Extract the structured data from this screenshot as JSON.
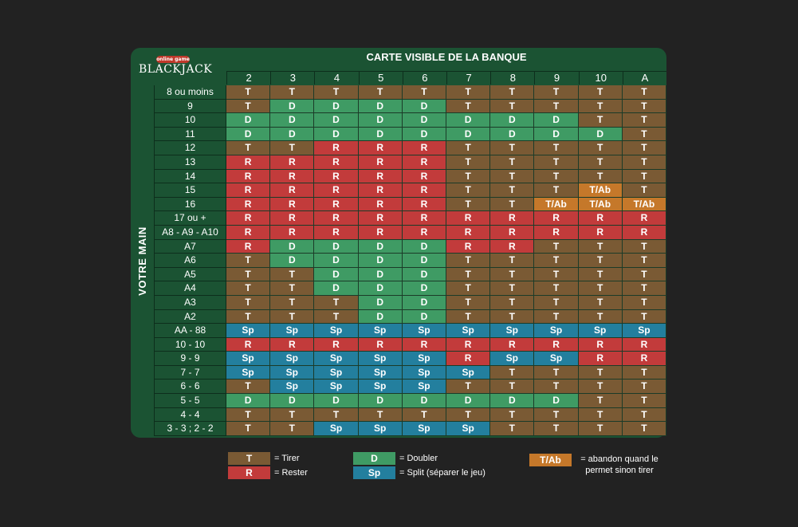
{
  "brand": {
    "badge": "online game",
    "name": "BLACKJACK"
  },
  "dealer_title": "CARTE VISIBLE DE LA BANQUE",
  "hand_title": "VOTRE MAIN",
  "dealer_cards": [
    "2",
    "3",
    "4",
    "5",
    "6",
    "7",
    "8",
    "9",
    "10",
    "A"
  ],
  "colors": {
    "T": "#7a5a34",
    "D": "#3f9b64",
    "R": "#c23b3b",
    "Sp": "#237f9e",
    "T/Ab": "#c5782a",
    "board": "#1b5333",
    "background": "#222222"
  },
  "rows": [
    {
      "hand": "8 ou moins",
      "actions": [
        "T",
        "T",
        "T",
        "T",
        "T",
        "T",
        "T",
        "T",
        "T",
        "T"
      ]
    },
    {
      "hand": "9",
      "actions": [
        "T",
        "D",
        "D",
        "D",
        "D",
        "T",
        "T",
        "T",
        "T",
        "T"
      ]
    },
    {
      "hand": "10",
      "actions": [
        "D",
        "D",
        "D",
        "D",
        "D",
        "D",
        "D",
        "D",
        "T",
        "T"
      ]
    },
    {
      "hand": "11",
      "actions": [
        "D",
        "D",
        "D",
        "D",
        "D",
        "D",
        "D",
        "D",
        "D",
        "T"
      ]
    },
    {
      "hand": "12",
      "actions": [
        "T",
        "T",
        "R",
        "R",
        "R",
        "T",
        "T",
        "T",
        "T",
        "T"
      ]
    },
    {
      "hand": "13",
      "actions": [
        "R",
        "R",
        "R",
        "R",
        "R",
        "T",
        "T",
        "T",
        "T",
        "T"
      ]
    },
    {
      "hand": "14",
      "actions": [
        "R",
        "R",
        "R",
        "R",
        "R",
        "T",
        "T",
        "T",
        "T",
        "T"
      ]
    },
    {
      "hand": "15",
      "actions": [
        "R",
        "R",
        "R",
        "R",
        "R",
        "T",
        "T",
        "T",
        "T/Ab",
        "T"
      ]
    },
    {
      "hand": "16",
      "actions": [
        "R",
        "R",
        "R",
        "R",
        "R",
        "T",
        "T",
        "T/Ab",
        "T/Ab",
        "T/Ab"
      ]
    },
    {
      "hand": "17 ou +",
      "actions": [
        "R",
        "R",
        "R",
        "R",
        "R",
        "R",
        "R",
        "R",
        "R",
        "R"
      ]
    },
    {
      "hand": "A8 - A9 - A10",
      "actions": [
        "R",
        "R",
        "R",
        "R",
        "R",
        "R",
        "R",
        "R",
        "R",
        "R"
      ]
    },
    {
      "hand": "A7",
      "actions": [
        "R",
        "D",
        "D",
        "D",
        "D",
        "R",
        "R",
        "T",
        "T",
        "T"
      ]
    },
    {
      "hand": "A6",
      "actions": [
        "T",
        "D",
        "D",
        "D",
        "D",
        "T",
        "T",
        "T",
        "T",
        "T"
      ]
    },
    {
      "hand": "A5",
      "actions": [
        "T",
        "T",
        "D",
        "D",
        "D",
        "T",
        "T",
        "T",
        "T",
        "T"
      ]
    },
    {
      "hand": "A4",
      "actions": [
        "T",
        "T",
        "D",
        "D",
        "D",
        "T",
        "T",
        "T",
        "T",
        "T"
      ]
    },
    {
      "hand": "A3",
      "actions": [
        "T",
        "T",
        "T",
        "D",
        "D",
        "T",
        "T",
        "T",
        "T",
        "T"
      ]
    },
    {
      "hand": "A2",
      "actions": [
        "T",
        "T",
        "T",
        "D",
        "D",
        "T",
        "T",
        "T",
        "T",
        "T"
      ]
    },
    {
      "hand": "AA - 88",
      "actions": [
        "Sp",
        "Sp",
        "Sp",
        "Sp",
        "Sp",
        "Sp",
        "Sp",
        "Sp",
        "Sp",
        "Sp"
      ]
    },
    {
      "hand": "10 - 10",
      "actions": [
        "R",
        "R",
        "R",
        "R",
        "R",
        "R",
        "R",
        "R",
        "R",
        "R"
      ]
    },
    {
      "hand": "9 - 9",
      "actions": [
        "Sp",
        "Sp",
        "Sp",
        "Sp",
        "Sp",
        "R",
        "Sp",
        "Sp",
        "R",
        "R"
      ]
    },
    {
      "hand": "7 - 7",
      "actions": [
        "Sp",
        "Sp",
        "Sp",
        "Sp",
        "Sp",
        "Sp",
        "T",
        "T",
        "T",
        "T"
      ]
    },
    {
      "hand": "6 - 6",
      "actions": [
        "T",
        "Sp",
        "Sp",
        "Sp",
        "Sp",
        "T",
        "T",
        "T",
        "T",
        "T"
      ]
    },
    {
      "hand": "5 - 5",
      "actions": [
        "D",
        "D",
        "D",
        "D",
        "D",
        "D",
        "D",
        "D",
        "T",
        "T"
      ]
    },
    {
      "hand": "4 - 4",
      "actions": [
        "T",
        "T",
        "T",
        "T",
        "T",
        "T",
        "T",
        "T",
        "T",
        "T"
      ]
    },
    {
      "hand": "3 - 3 ; 2 - 2",
      "actions": [
        "T",
        "T",
        "Sp",
        "Sp",
        "Sp",
        "Sp",
        "T",
        "T",
        "T",
        "T"
      ]
    }
  ],
  "legend": [
    {
      "code": "T",
      "text": "= Tirer"
    },
    {
      "code": "R",
      "text": "= Rester"
    },
    {
      "code": "D",
      "text": "= Doubler"
    },
    {
      "code": "Sp",
      "text": "= Split (séparer le jeu)"
    },
    {
      "code": "T/Ab",
      "text": "= abandon quand le permet sinon tirer"
    }
  ]
}
